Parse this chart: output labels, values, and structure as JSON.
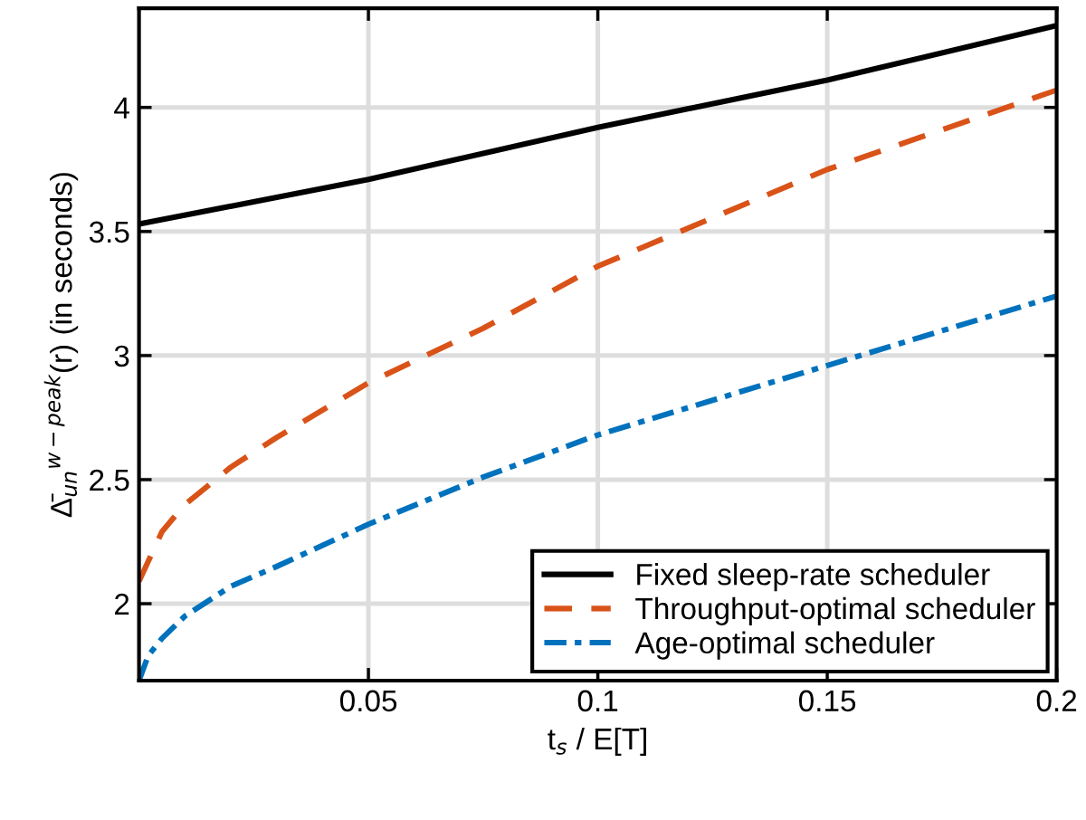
{
  "chart_data": {
    "type": "line",
    "xlabel": "t$_{s}$ / E[T]",
    "ylabel": "Δ̄$_{un}$$^{w−peak}$(r) (in seconds)",
    "xlim": [
      0,
      0.2
    ],
    "xticks": [
      0.05,
      0.1,
      0.15,
      0.2
    ],
    "ylim": [
      1.69,
      4.4
    ],
    "yticks": [
      2,
      2.5,
      3,
      3.5,
      4
    ],
    "grid": true,
    "legend": "bottom right",
    "series": [
      {
        "name": "Fixed sleep-rate scheduler",
        "color": "#000000",
        "line_style": "solid",
        "x": [
          0,
          0.05,
          0.1,
          0.15,
          0.2
        ],
        "values": [
          3.53,
          3.71,
          3.92,
          4.11,
          4.33
        ]
      },
      {
        "name": "Throughput-optimal scheduler",
        "color": "#d95319",
        "line_style": "dashed",
        "x": [
          0,
          0.005,
          0.01,
          0.02,
          0.03,
          0.05,
          0.075,
          0.1,
          0.15,
          0.2
        ],
        "values": [
          2.09,
          2.29,
          2.4,
          2.55,
          2.67,
          2.89,
          3.11,
          3.36,
          3.75,
          4.07
        ]
      },
      {
        "name": "Age-optimal scheduler",
        "color": "#0072bd",
        "line_style": "dashdot",
        "x": [
          0,
          0.002,
          0.005,
          0.01,
          0.02,
          0.03,
          0.05,
          0.075,
          0.1,
          0.15,
          0.2
        ],
        "values": [
          1.69,
          1.79,
          1.86,
          1.95,
          2.07,
          2.15,
          2.32,
          2.51,
          2.68,
          2.96,
          3.24
        ]
      }
    ]
  }
}
